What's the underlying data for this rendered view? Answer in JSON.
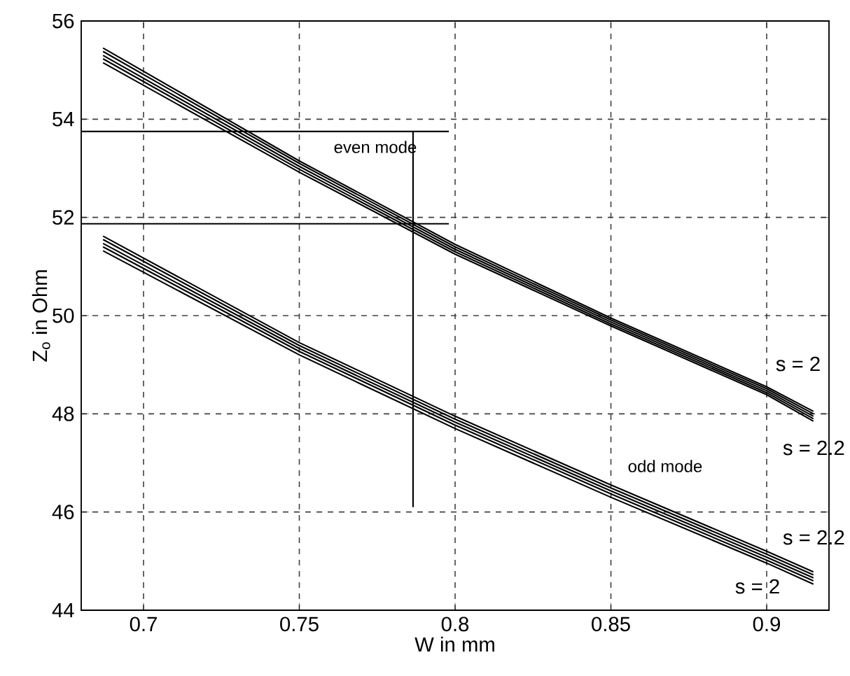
{
  "chart_data": {
    "type": "line",
    "xlabel": "W in mm",
    "ylabel": "Z$_{o}$ in Ohm",
    "xlim": [
      0.68,
      0.92
    ],
    "ylim": [
      44,
      56
    ],
    "xticks": [
      0.7,
      0.75,
      0.8,
      0.85,
      0.9
    ],
    "yticks": [
      44,
      46,
      48,
      50,
      52,
      54,
      56
    ],
    "grid": true,
    "marker": "none",
    "line_style": "solid",
    "series": [
      {
        "color": "#000000",
        "x": [
          0.687,
          0.75,
          0.8,
          0.85,
          0.9,
          0.915
        ],
        "values": [
          55.45,
          53.15,
          51.45,
          49.95,
          48.55,
          48.05
        ]
      },
      {
        "color": "#000000",
        "x": [
          0.687,
          0.75,
          0.8,
          0.85,
          0.9,
          0.915
        ],
        "values": [
          55.38,
          53.1,
          51.4,
          49.91,
          48.51,
          48.0
        ]
      },
      {
        "color": "#000000",
        "x": [
          0.687,
          0.75,
          0.8,
          0.85,
          0.9,
          0.915
        ],
        "values": [
          55.3,
          53.04,
          51.35,
          49.87,
          48.47,
          47.95
        ]
      },
      {
        "color": "#000000",
        "x": [
          0.687,
          0.75,
          0.8,
          0.85,
          0.9,
          0.915
        ],
        "values": [
          55.23,
          52.98,
          51.3,
          49.83,
          48.43,
          47.9
        ]
      },
      {
        "color": "#000000",
        "x": [
          0.687,
          0.75,
          0.8,
          0.85,
          0.9,
          0.915
        ],
        "values": [
          55.15,
          52.92,
          51.25,
          49.79,
          48.39,
          47.85
        ]
      },
      {
        "color": "#000000",
        "x": [
          0.687,
          0.75,
          0.8,
          0.85,
          0.9,
          0.915
        ],
        "values": [
          51.62,
          49.45,
          47.95,
          46.55,
          45.2,
          44.78
        ]
      },
      {
        "color": "#000000",
        "x": [
          0.687,
          0.75,
          0.8,
          0.85,
          0.9,
          0.915
        ],
        "values": [
          51.55,
          49.39,
          47.89,
          46.49,
          45.14,
          44.72
        ]
      },
      {
        "color": "#000000",
        "x": [
          0.687,
          0.75,
          0.8,
          0.85,
          0.9,
          0.915
        ],
        "values": [
          51.47,
          49.33,
          47.83,
          46.43,
          45.08,
          44.66
        ]
      },
      {
        "color": "#000000",
        "x": [
          0.687,
          0.75,
          0.8,
          0.85,
          0.9,
          0.915
        ],
        "values": [
          51.4,
          49.27,
          47.77,
          46.37,
          45.02,
          44.6
        ]
      },
      {
        "color": "#000000",
        "x": [
          0.687,
          0.75,
          0.8,
          0.85,
          0.9,
          0.915
        ],
        "values": [
          51.32,
          49.2,
          47.7,
          46.3,
          44.96,
          44.53
        ]
      },
      {
        "color": "#000000",
        "x": [
          0.68,
          0.798
        ],
        "values": [
          53.75,
          53.75
        ]
      },
      {
        "color": "#000000",
        "x": [
          0.68,
          0.798
        ],
        "values": [
          51.87,
          51.87
        ]
      },
      {
        "color": "#000000",
        "x": [
          0.7865,
          0.7865
        ],
        "values": [
          46.1,
          53.75
        ]
      }
    ],
    "annotations": [
      "even mode",
      "odd mode",
      "s = 2",
      "s = 2.2",
      "s = 2.2",
      "s = 2"
    ]
  }
}
